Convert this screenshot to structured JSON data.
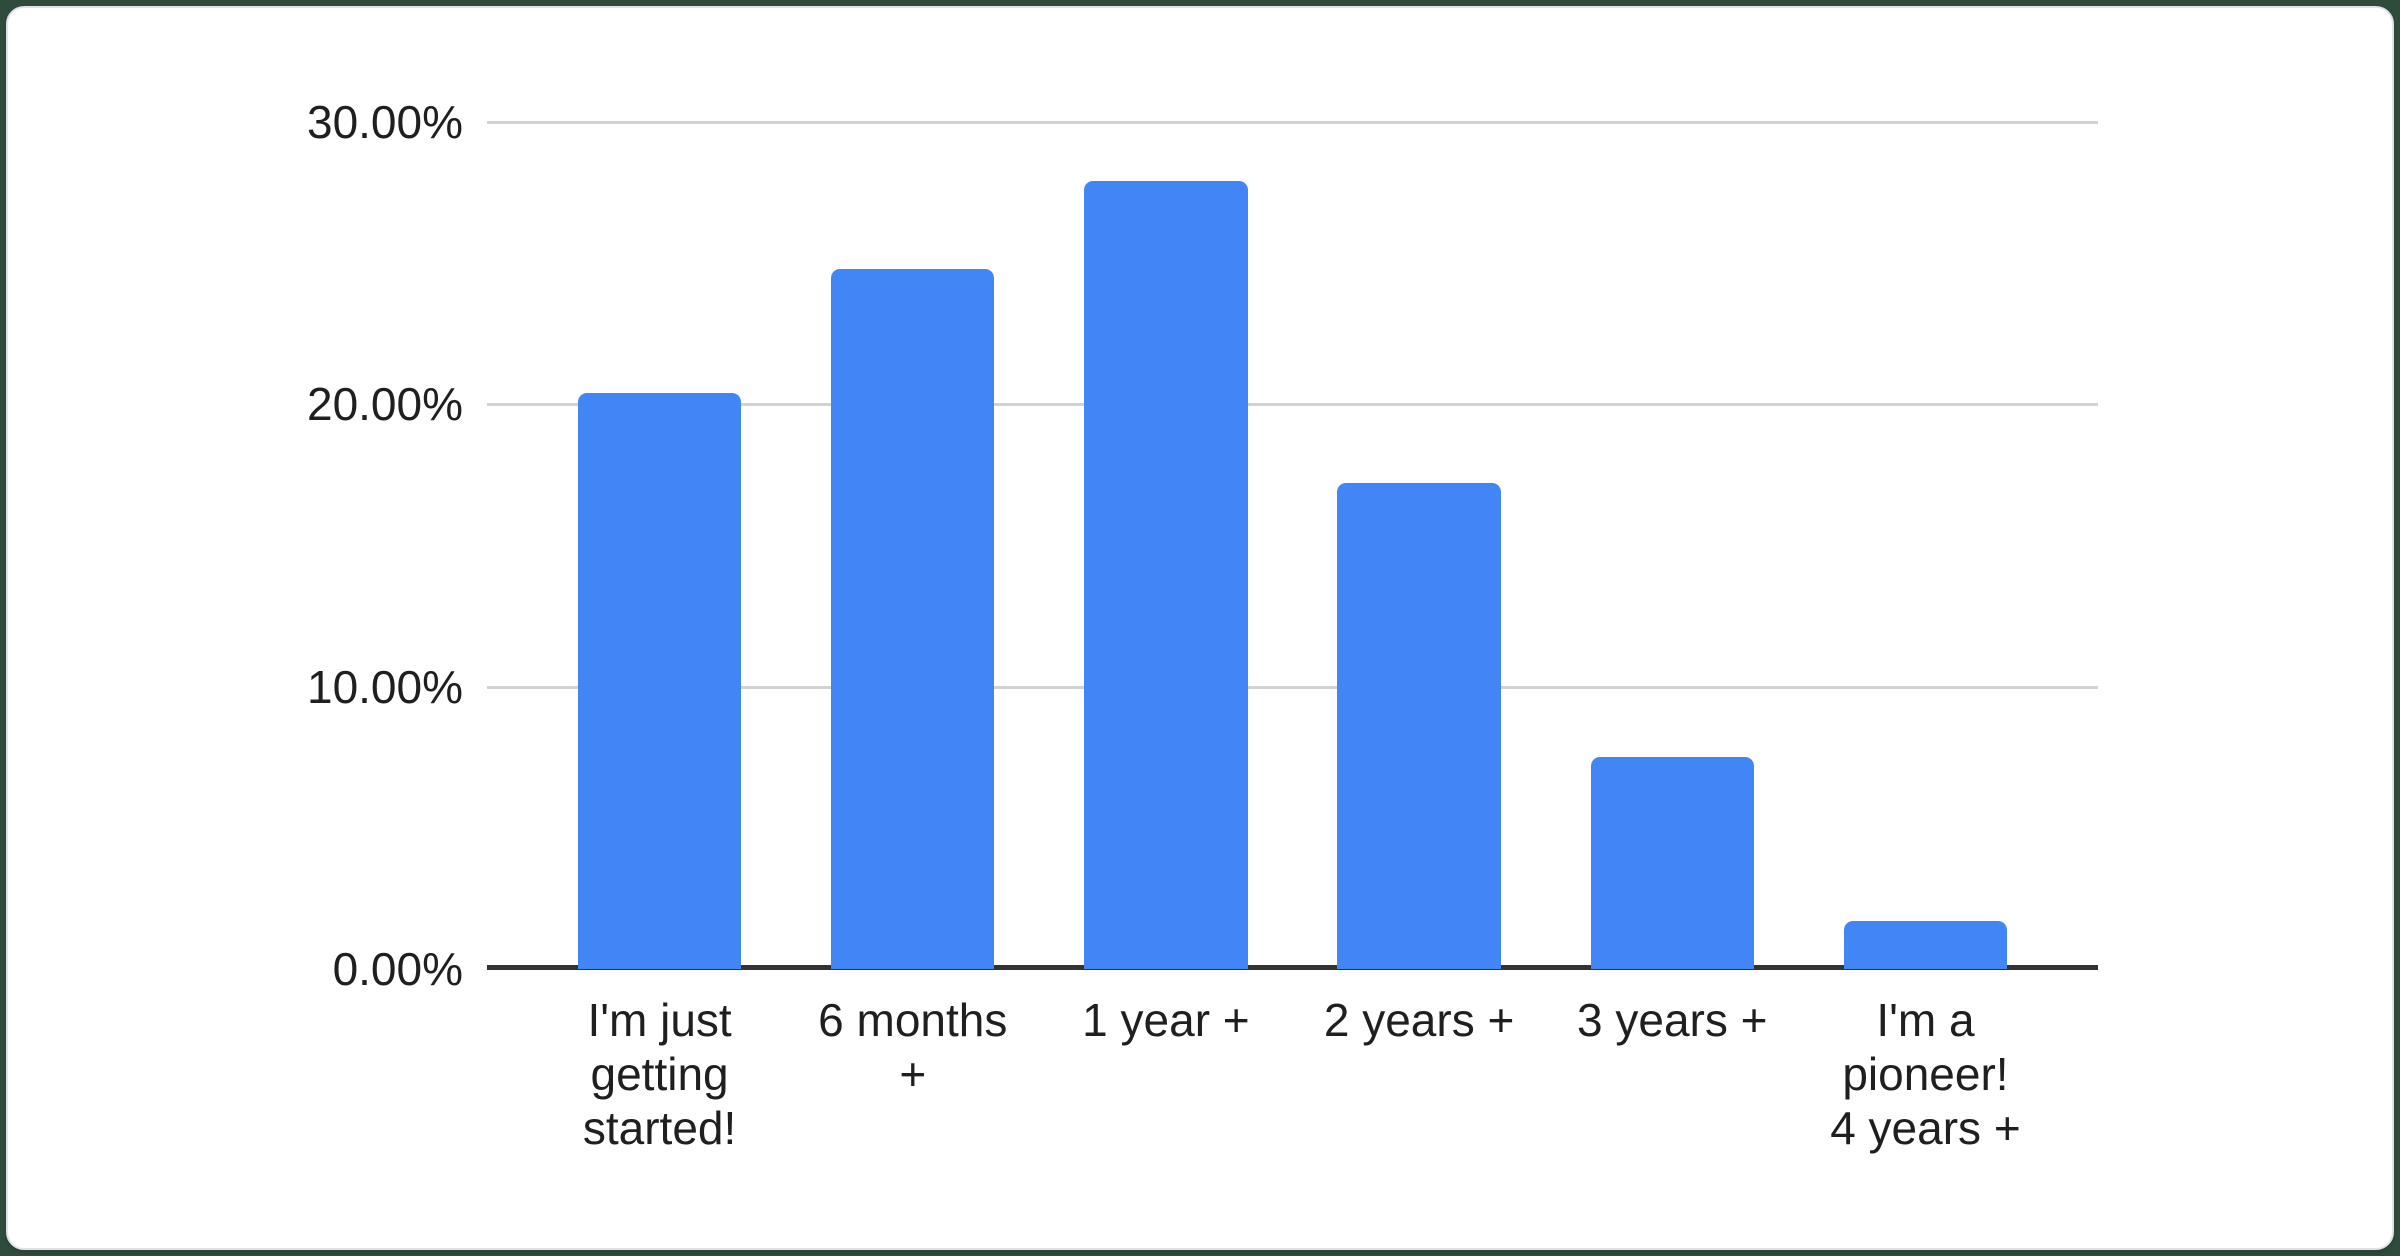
{
  "page": {
    "background_color": "#2e4b3c",
    "card_color": "#ffffff",
    "card_border_color": "#dfe2e6"
  },
  "chart_data": {
    "type": "bar",
    "title": "",
    "xlabel": "",
    "ylabel": "",
    "categories": [
      "I'm just getting started!",
      "6 months +",
      "1 year +",
      "2 years +",
      "3 years +",
      "I'm a pioneer! 4 years +"
    ],
    "categories_wrapped": [
      "I'm just\ngetting\nstarted!",
      "6 months\n+",
      "1 year +",
      "2 years +",
      "3 years +",
      "I'm a\npioneer!\n4 years +"
    ],
    "values": [
      20.4,
      24.8,
      27.9,
      17.2,
      7.5,
      1.7
    ],
    "unit": "%",
    "ylim": [
      0,
      30
    ],
    "yticks": [
      {
        "label": "30.00%",
        "value": 30
      },
      {
        "label": "20.00%",
        "value": 20
      },
      {
        "label": "10.00%",
        "value": 10
      },
      {
        "label": "0.00%",
        "value": 0
      }
    ],
    "grid": true,
    "legend_position": "none",
    "bar_color": "#4285f4",
    "gridline_color": "#d2d2d2",
    "axis_color": "#333333",
    "label_color": "#1f1f1f"
  }
}
